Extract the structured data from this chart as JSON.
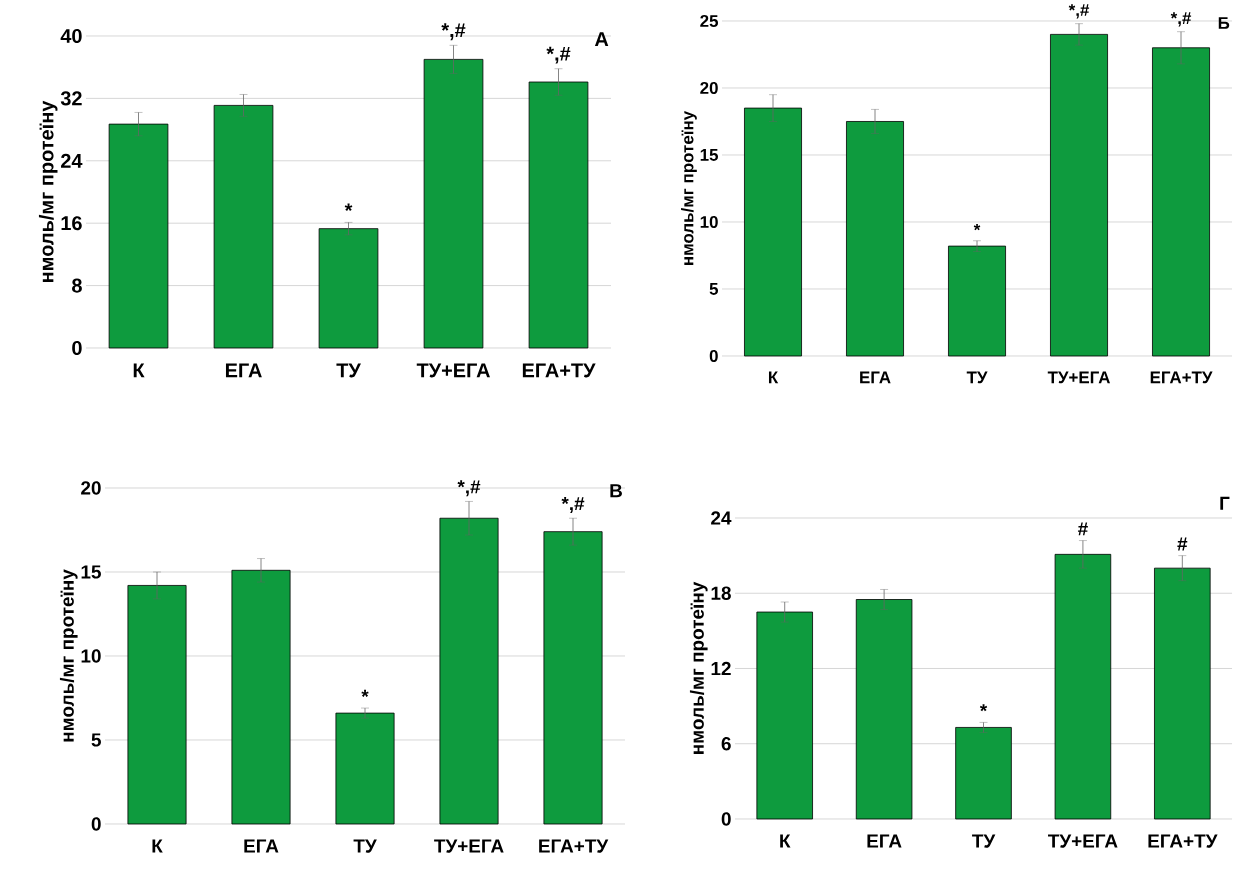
{
  "chart_data": [
    {
      "type": "bar",
      "title": "А",
      "ylabel": "нмоль/мг протеїну",
      "categories": [
        "К",
        "ЕГА",
        "ТУ",
        "ТУ+ЕГА",
        "ЕГА+ТУ"
      ],
      "values": [
        28.7,
        31.1,
        15.3,
        37.0,
        34.1
      ],
      "errors": [
        1.5,
        1.4,
        0.8,
        1.8,
        1.7
      ],
      "color": "#0e9b3e",
      "ylim": [
        0,
        40
      ],
      "yticks": [
        0,
        8,
        16,
        24,
        32,
        40
      ],
      "grid": "y",
      "annotations": [
        {
          "text": "*",
          "x": "ТУ",
          "y": 15.3
        },
        {
          "text": "*,#",
          "x": "ТУ+ЕГА",
          "y": 37.0
        },
        {
          "text": "*,#",
          "x": "ЕГА+ТУ",
          "y": 34.1
        }
      ]
    },
    {
      "type": "bar",
      "title": "Б",
      "ylabel": "нмоль/мг протеїну",
      "categories": [
        "К",
        "ЕГА",
        "ТУ",
        "ТУ+ЕГА",
        "ЕГА+ТУ"
      ],
      "values": [
        18.5,
        17.5,
        8.2,
        24.0,
        23.0
      ],
      "errors": [
        1.0,
        0.9,
        0.4,
        0.8,
        1.2
      ],
      "color": "#0e9b3e",
      "ylim": [
        0,
        25
      ],
      "yticks": [
        0,
        5,
        10,
        15,
        20,
        25
      ],
      "grid": "y",
      "annotations": [
        {
          "text": "*",
          "x": "ТУ",
          "y": 8.2
        },
        {
          "text": "*,#",
          "x": "ТУ+ЕГА",
          "y": 24.0
        },
        {
          "text": "*,#",
          "x": "ЕГА+ТУ",
          "y": 23.0
        }
      ]
    },
    {
      "type": "bar",
      "title": "В",
      "ylabel": "нмоль/мг протеїну",
      "categories": [
        "К",
        "ЕГА",
        "ТУ",
        "ТУ+ЕГА",
        "ЕГА+ТУ"
      ],
      "values": [
        14.2,
        15.1,
        6.6,
        18.2,
        17.4
      ],
      "errors": [
        0.8,
        0.7,
        0.3,
        1.0,
        0.8
      ],
      "color": "#0e9b3e",
      "ylim": [
        0,
        20
      ],
      "yticks": [
        0,
        5,
        10,
        15,
        20
      ],
      "grid": "y",
      "annotations": [
        {
          "text": "*",
          "x": "ТУ",
          "y": 6.6
        },
        {
          "text": "*,#",
          "x": "ТУ+ЕГА",
          "y": 18.2
        },
        {
          "text": "*,#",
          "x": "ЕГА+ТУ",
          "y": 17.4
        }
      ]
    },
    {
      "type": "bar",
      "title": "Г",
      "ylabel": "нмоль/мг протеїну",
      "categories": [
        "К",
        "ЕГА",
        "ТУ",
        "ТУ+ЕГА",
        "ЕГА+ТУ"
      ],
      "values": [
        16.5,
        17.5,
        7.3,
        21.1,
        20.0
      ],
      "errors": [
        0.8,
        0.8,
        0.4,
        1.1,
        1.0
      ],
      "color": "#0e9b3e",
      "ylim": [
        0,
        24
      ],
      "yticks": [
        0,
        6,
        12,
        18,
        24
      ],
      "grid": "y",
      "annotations": [
        {
          "text": "*",
          "x": "ТУ",
          "y": 7.3
        },
        {
          "text": "#",
          "x": "ТУ+ЕГА",
          "y": 21.1
        },
        {
          "text": "#",
          "x": "ЕГА+ТУ",
          "y": 20.0
        }
      ]
    }
  ]
}
